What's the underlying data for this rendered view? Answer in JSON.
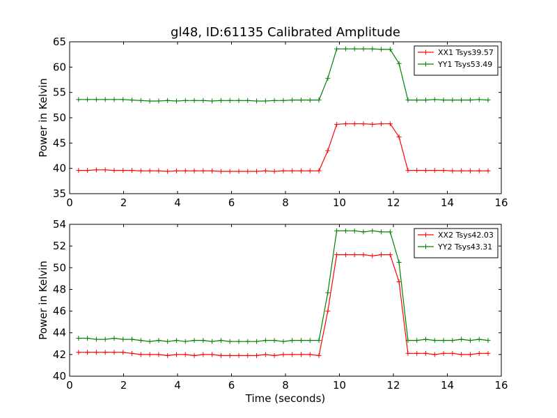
{
  "chart_data": {
    "type": "line",
    "title": "gl48, ID:61135 Calibrated Amplitude",
    "xlabel": "Time (seconds)",
    "colors": {
      "red": "#ff0000",
      "green": "#008000"
    },
    "legend_placement": "top-right",
    "grid": false,
    "x": [
      0.33,
      0.66,
      0.99,
      1.32,
      1.65,
      1.98,
      2.31,
      2.64,
      2.97,
      3.3,
      3.63,
      3.96,
      4.29,
      4.62,
      4.95,
      5.28,
      5.61,
      5.94,
      6.27,
      6.6,
      6.93,
      7.26,
      7.59,
      7.92,
      8.25,
      8.58,
      8.91,
      9.24,
      9.57,
      9.9,
      10.23,
      10.56,
      10.89,
      11.22,
      11.55,
      11.88,
      12.21,
      12.54,
      12.87,
      13.2,
      13.53,
      13.86,
      14.19,
      14.52,
      14.85,
      15.18,
      15.51
    ],
    "panels": [
      {
        "ylabel": "Power in Kelvin",
        "xlim": [
          0,
          16
        ],
        "ylim": [
          35,
          65
        ],
        "xticks": [
          0,
          2,
          4,
          6,
          8,
          10,
          12,
          14,
          16
        ],
        "yticks": [
          35,
          40,
          45,
          50,
          55,
          60,
          65
        ],
        "series": [
          {
            "name": "XX1 Tsys39.57",
            "color": "#ff0000",
            "values": [
              39.6,
              39.6,
              39.7,
              39.7,
              39.6,
              39.6,
              39.6,
              39.5,
              39.5,
              39.5,
              39.4,
              39.5,
              39.5,
              39.5,
              39.5,
              39.5,
              39.4,
              39.4,
              39.4,
              39.4,
              39.4,
              39.5,
              39.4,
              39.5,
              39.5,
              39.5,
              39.5,
              39.5,
              43.5,
              48.7,
              48.8,
              48.8,
              48.8,
              48.7,
              48.8,
              48.8,
              46.2,
              39.6,
              39.6,
              39.6,
              39.6,
              39.6,
              39.5,
              39.5,
              39.5,
              39.5,
              39.5
            ]
          },
          {
            "name": "YY1 Tsys53.49",
            "color": "#008000",
            "values": [
              53.6,
              53.6,
              53.6,
              53.6,
              53.6,
              53.6,
              53.5,
              53.4,
              53.3,
              53.3,
              53.4,
              53.3,
              53.4,
              53.4,
              53.4,
              53.3,
              53.4,
              53.4,
              53.4,
              53.4,
              53.3,
              53.3,
              53.4,
              53.4,
              53.5,
              53.5,
              53.5,
              53.5,
              57.8,
              63.6,
              63.6,
              63.6,
              63.6,
              63.6,
              63.5,
              63.5,
              60.7,
              53.5,
              53.5,
              53.5,
              53.6,
              53.5,
              53.5,
              53.5,
              53.5,
              53.6,
              53.5
            ]
          }
        ]
      },
      {
        "ylabel": "Power in Kelvin",
        "xlim": [
          0,
          16
        ],
        "ylim": [
          40,
          54
        ],
        "xticks": [
          0,
          2,
          4,
          6,
          8,
          10,
          12,
          14,
          16
        ],
        "yticks": [
          40,
          42,
          44,
          46,
          48,
          50,
          52,
          54
        ],
        "series": [
          {
            "name": "XX2 Tsys42.03",
            "color": "#ff0000",
            "values": [
              42.2,
              42.2,
              42.2,
              42.2,
              42.2,
              42.2,
              42.1,
              42.0,
              42.0,
              42.0,
              41.9,
              42.0,
              42.0,
              41.9,
              42.0,
              42.0,
              41.9,
              41.9,
              41.9,
              41.9,
              41.9,
              42.0,
              41.9,
              42.0,
              42.0,
              42.0,
              42.0,
              41.9,
              46.0,
              51.2,
              51.2,
              51.2,
              51.2,
              51.1,
              51.2,
              51.2,
              48.7,
              42.1,
              42.1,
              42.1,
              42.0,
              42.1,
              42.1,
              42.0,
              42.0,
              42.1,
              42.1
            ]
          },
          {
            "name": "YY2 Tsys43.31",
            "color": "#008000",
            "values": [
              43.5,
              43.5,
              43.4,
              43.4,
              43.5,
              43.4,
              43.4,
              43.3,
              43.2,
              43.3,
              43.2,
              43.3,
              43.2,
              43.3,
              43.3,
              43.2,
              43.3,
              43.2,
              43.2,
              43.2,
              43.2,
              43.3,
              43.3,
              43.2,
              43.3,
              43.3,
              43.3,
              43.3,
              47.7,
              53.4,
              53.4,
              53.4,
              53.3,
              53.4,
              53.3,
              53.3,
              50.5,
              43.3,
              43.3,
              43.4,
              43.3,
              43.3,
              43.3,
              43.4,
              43.3,
              43.4,
              43.3
            ]
          }
        ]
      }
    ]
  }
}
